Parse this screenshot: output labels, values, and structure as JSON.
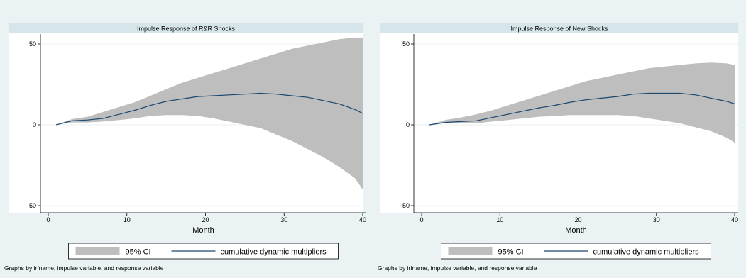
{
  "colors": {
    "background": "#eaf2f3",
    "plot_area": "#ffffff",
    "header_strip": "#d6e5ea",
    "ci_fill": "#bebebe",
    "line": "#1a476f",
    "grid": "#eaf2f3",
    "legend_box": "#ffffff"
  },
  "chart_data": [
    {
      "type": "area",
      "title": "Impulse Response of R&R Shocks",
      "xlabel": "Month",
      "ylabel": "",
      "xlim": [
        0,
        40
      ],
      "ylim": [
        -50,
        50
      ],
      "xticks": [
        0,
        10,
        20,
        30,
        40
      ],
      "yticks": [
        -50,
        0,
        50
      ],
      "grid": true,
      "legend_position": "bottom",
      "x": [
        1,
        3,
        5,
        7,
        9,
        11,
        13,
        15,
        17,
        19,
        21,
        23,
        25,
        27,
        29,
        31,
        33,
        35,
        37,
        39,
        40
      ],
      "series": [
        {
          "name": "95% CI",
          "role": "band",
          "lower": [
            0,
            1.5,
            1.5,
            2,
            3,
            4,
            5.5,
            6,
            6,
            5.5,
            4,
            2,
            0,
            -2,
            -6,
            -10,
            -15,
            -20,
            -26,
            -33,
            -40
          ],
          "upper": [
            0,
            3.5,
            5,
            8,
            11,
            14,
            18,
            22,
            26,
            29,
            32,
            35,
            38,
            41,
            44,
            47,
            49,
            51,
            53,
            54,
            54
          ]
        },
        {
          "name": "cumulative dynamic multipliers",
          "role": "line",
          "values": [
            0,
            2.5,
            3,
            4,
            6.5,
            9,
            12,
            14.5,
            16,
            17.5,
            18,
            18.5,
            19,
            19.5,
            19,
            18,
            17,
            15,
            13,
            9.5,
            7
          ]
        }
      ]
    },
    {
      "type": "area",
      "title": "Impulse Response of New Shocks",
      "xlabel": "Month",
      "ylabel": "",
      "xlim": [
        0,
        40
      ],
      "ylim": [
        -50,
        50
      ],
      "xticks": [
        0,
        10,
        20,
        30,
        40
      ],
      "yticks": [
        -50,
        0,
        50
      ],
      "grid": true,
      "legend_position": "bottom",
      "x": [
        1,
        3,
        5,
        7,
        9,
        11,
        13,
        15,
        17,
        19,
        21,
        23,
        25,
        27,
        29,
        31,
        33,
        35,
        37,
        39,
        40
      ],
      "series": [
        {
          "name": "95% CI",
          "role": "band",
          "lower": [
            0,
            1,
            1,
            1,
            2,
            3,
            4,
            5,
            5.5,
            6,
            6,
            6,
            6,
            5.5,
            4,
            2.5,
            1,
            -1.5,
            -4,
            -8,
            -11
          ],
          "upper": [
            0,
            3,
            4.5,
            6.5,
            9,
            12,
            15,
            18,
            21,
            24,
            27,
            29,
            31,
            33,
            35,
            36,
            37,
            38,
            38.5,
            38,
            37
          ]
        },
        {
          "name": "cumulative dynamic multipliers",
          "role": "line",
          "values": [
            0,
            1.5,
            2,
            2.5,
            4.5,
            6.5,
            8.5,
            10.5,
            12,
            14,
            15.5,
            16.5,
            17.5,
            19,
            19.5,
            19.5,
            19.5,
            18.5,
            16.5,
            14.5,
            13
          ]
        }
      ]
    }
  ],
  "legend": {
    "ci_label": "95% CI",
    "line_label": "cumulative dynamic multipliers"
  },
  "footer": {
    "note": "Graphs by irfname, impulse variable, and response variable"
  }
}
